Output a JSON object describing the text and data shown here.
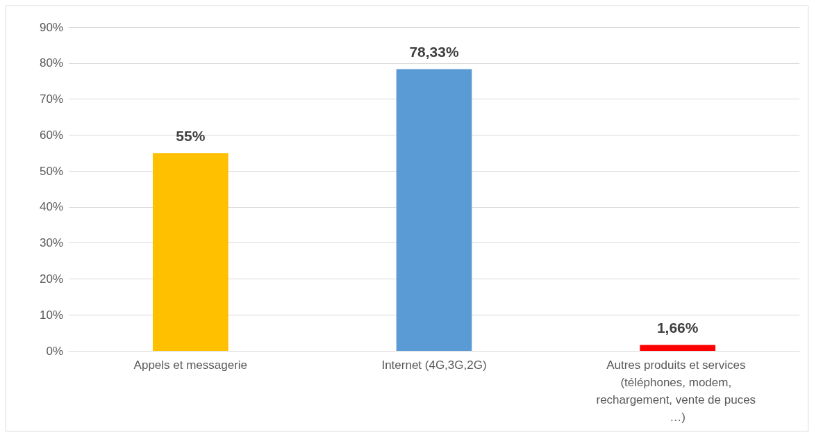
{
  "chart_data": {
    "type": "bar",
    "categories": [
      "Appels et messagerie",
      "Internet (4G,3G,2G)",
      "Autres produits et services (téléphones, modem, rechargement, vente de puces …)"
    ],
    "values": [
      55,
      78.33,
      1.66
    ],
    "colors": [
      "#ffc000",
      "#5b9bd5",
      "#ff0000"
    ],
    "value_labels": [
      "55%",
      "78,33%",
      "1,66%"
    ],
    "ylim": [
      0,
      90
    ],
    "yticks": [
      {
        "value": 0,
        "label": "0%"
      },
      {
        "value": 10,
        "label": "10%"
      },
      {
        "value": 20,
        "label": "20%"
      },
      {
        "value": 30,
        "label": "30%"
      },
      {
        "value": 40,
        "label": "40%"
      },
      {
        "value": 50,
        "label": "50%"
      },
      {
        "value": 60,
        "label": "60%"
      },
      {
        "value": 70,
        "label": "70%"
      },
      {
        "value": 80,
        "label": "80%"
      },
      {
        "value": 90,
        "label": "90%"
      }
    ],
    "grid": "y"
  }
}
